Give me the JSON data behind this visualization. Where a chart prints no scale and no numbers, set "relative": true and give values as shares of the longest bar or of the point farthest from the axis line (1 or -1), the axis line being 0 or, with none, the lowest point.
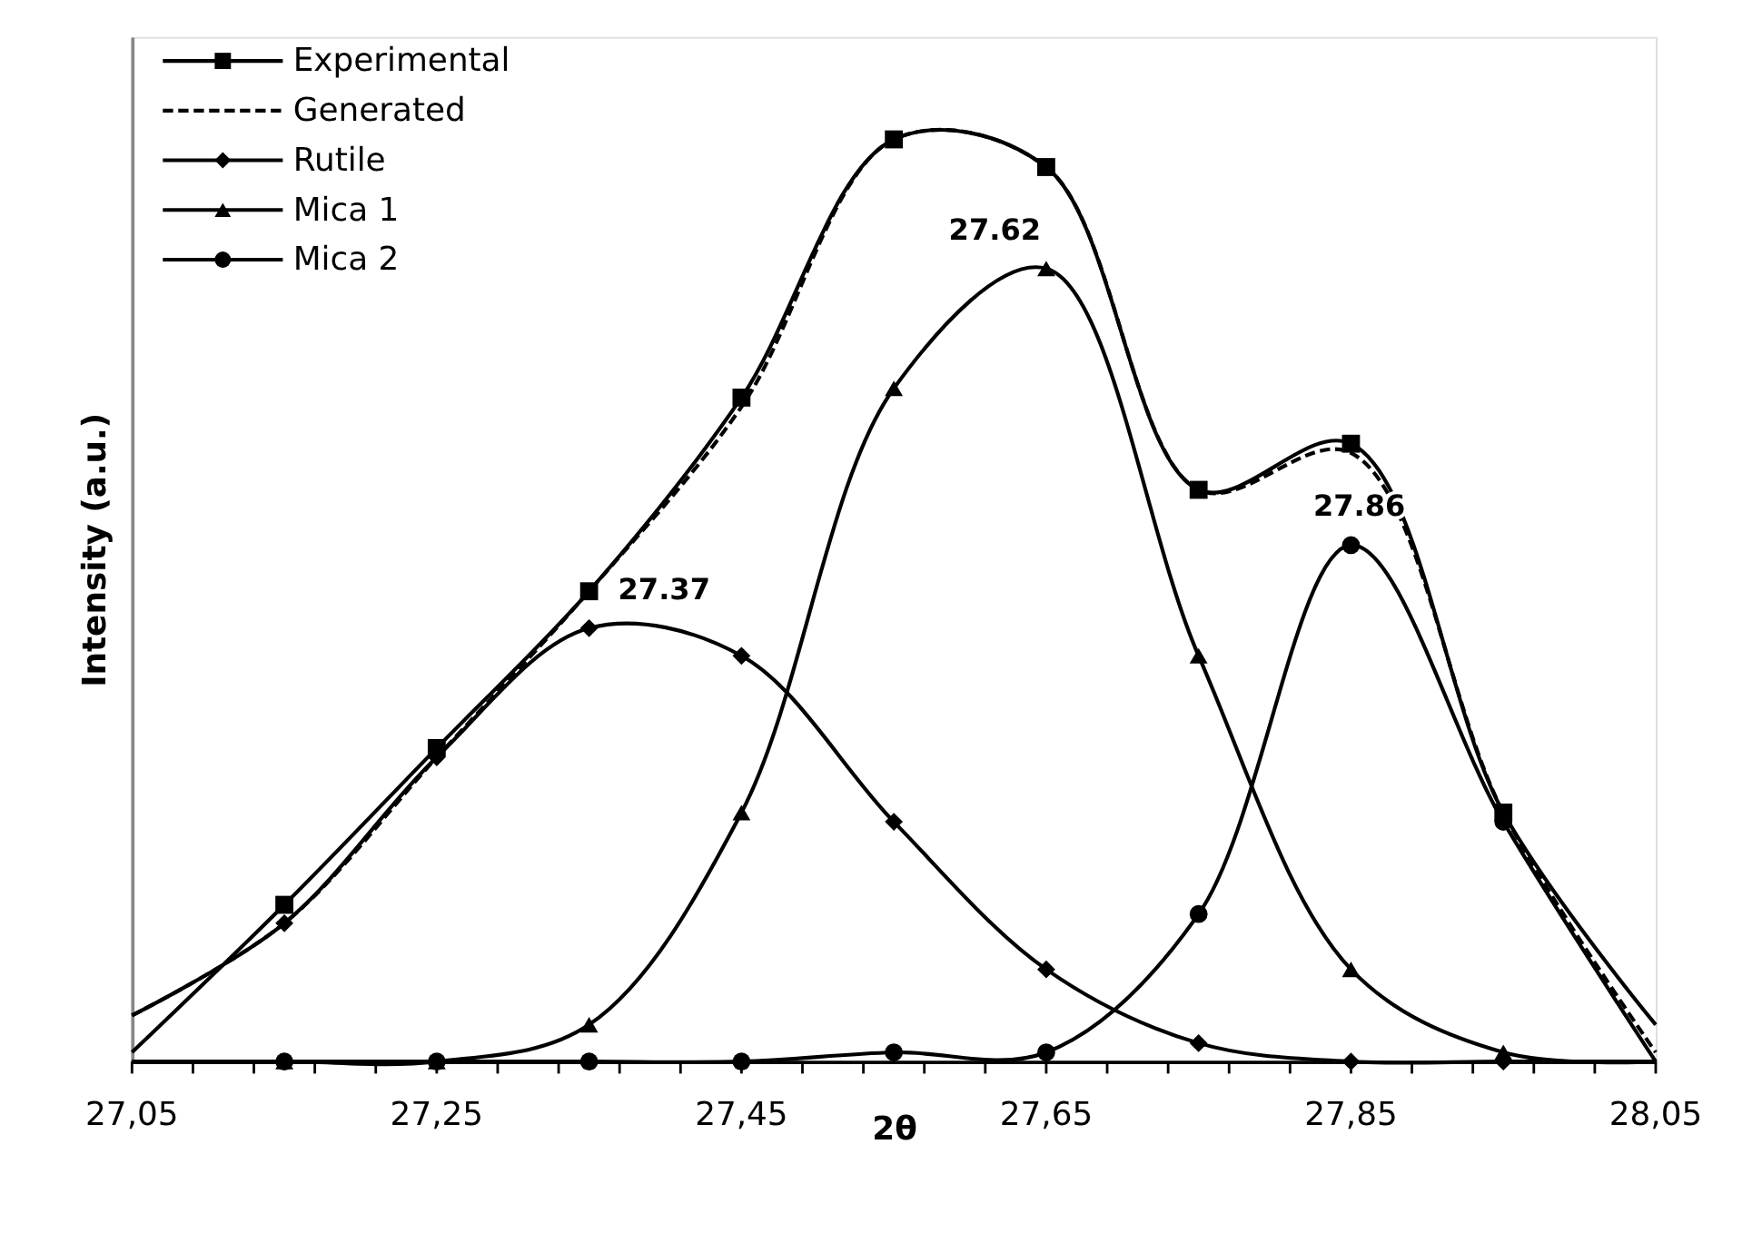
{
  "chart_data": {
    "type": "line",
    "relative": true,
    "xlabel": "2θ",
    "ylabel": "Intensity (a.u.)",
    "x": [
      27.05,
      27.15,
      27.25,
      27.35,
      27.45,
      27.55,
      27.65,
      27.75,
      27.85,
      27.95,
      28.05
    ],
    "xlim": [
      27.05,
      28.05
    ],
    "xticks": [
      {
        "value": 27.05,
        "label": "27,05"
      },
      {
        "value": 27.09,
        "label": null
      },
      {
        "value": 27.13,
        "label": null
      },
      {
        "value": 27.17,
        "label": null
      },
      {
        "value": 27.21,
        "label": null
      },
      {
        "value": 27.25,
        "label": "27,25"
      },
      {
        "value": 27.29,
        "label": null
      },
      {
        "value": 27.33,
        "label": null
      },
      {
        "value": 27.37,
        "label": null
      },
      {
        "value": 27.41,
        "label": null
      },
      {
        "value": 27.45,
        "label": "27,45"
      },
      {
        "value": 27.49,
        "label": null
      },
      {
        "value": 27.53,
        "label": null
      },
      {
        "value": 27.57,
        "label": null
      },
      {
        "value": 27.61,
        "label": null
      },
      {
        "value": 27.65,
        "label": "27,65"
      },
      {
        "value": 27.69,
        "label": null
      },
      {
        "value": 27.73,
        "label": null
      },
      {
        "value": 27.77,
        "label": null
      },
      {
        "value": 27.81,
        "label": null
      },
      {
        "value": 27.85,
        "label": "27,85"
      },
      {
        "value": 27.89,
        "label": null
      },
      {
        "value": 27.93,
        "label": null
      },
      {
        "value": 27.97,
        "label": null
      },
      {
        "value": 28.01,
        "label": null
      },
      {
        "value": 28.05,
        "label": "28,05"
      }
    ],
    "tick_labels": "x",
    "grid": false,
    "legend": "top left",
    "series": [
      {
        "name": "Experimental",
        "color": "#000000",
        "marker": "square",
        "line_style": "solid",
        "values": [
          0.01,
          0.17,
          0.34,
          0.51,
          0.72,
          1.0,
          0.97,
          0.62,
          0.67,
          0.27,
          0.04
        ]
      },
      {
        "name": "Generated",
        "color": "#000000",
        "marker": "none",
        "line_style": "dashed",
        "values": [
          0.05,
          0.15,
          0.33,
          0.51,
          0.71,
          1.0,
          0.97,
          0.62,
          0.66,
          0.27,
          0.01
        ]
      },
      {
        "name": "Rutile",
        "color": "#000000",
        "marker": "diamond",
        "line_style": "solid",
        "values": [
          0.05,
          0.15,
          0.33,
          0.47,
          0.44,
          0.26,
          0.1,
          0.02,
          0.0,
          0.0,
          0.0
        ]
      },
      {
        "name": "Mica 1",
        "color": "#000000",
        "marker": "triangle",
        "line_style": "solid",
        "values": [
          0.0,
          0.0,
          0.0,
          0.04,
          0.27,
          0.73,
          0.86,
          0.44,
          0.1,
          0.01,
          0.0
        ]
      },
      {
        "name": "Mica 2",
        "color": "#000000",
        "marker": "circle",
        "line_style": "solid",
        "values": [
          0.0,
          0.0,
          0.0,
          0.0,
          0.0,
          0.01,
          0.01,
          0.16,
          0.56,
          0.26,
          0.0
        ]
      }
    ],
    "annotations": [
      {
        "text": "27.37",
        "x": 27.37,
        "y": 0.47
      },
      {
        "text": "27.62",
        "x": 27.65,
        "y": 0.86
      },
      {
        "text": "27.86",
        "x": 27.86,
        "y": 0.56
      }
    ]
  }
}
